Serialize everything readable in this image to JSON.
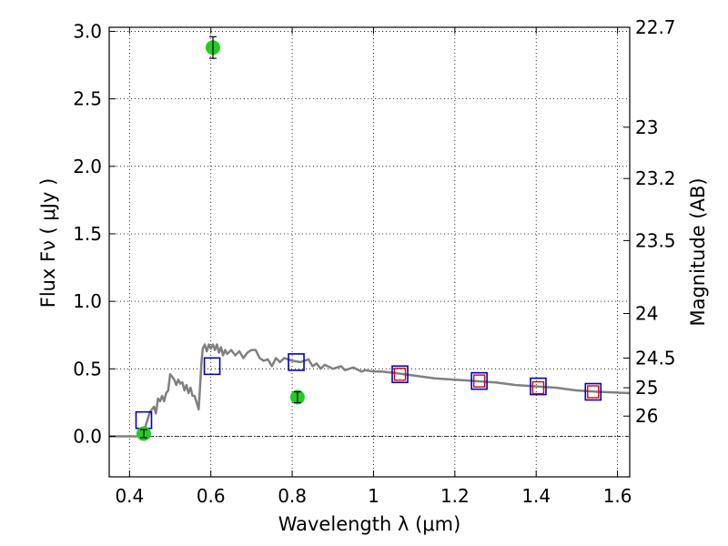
{
  "chart_data": {
    "type": "scatter",
    "xlabel": "Wavelength  λ (μm)",
    "ylabel": "Flux  Fν  ( μJy )",
    "y2label": "Magnitude (AB)",
    "xlim": [
      0.35,
      1.63
    ],
    "ylim": [
      -0.3,
      3.03
    ],
    "grid": true,
    "x_ticks": [
      0.4,
      0.6,
      0.8,
      1.0,
      1.2,
      1.4,
      1.6
    ],
    "x_tick_labels": [
      "0.4",
      "0.6",
      "0.8",
      "1",
      "1.2",
      "1.4",
      "1.6"
    ],
    "y_ticks": [
      0.0,
      0.5,
      1.0,
      1.5,
      2.0,
      2.5,
      3.0
    ],
    "y_tick_labels": [
      "0.0",
      "0.5",
      "1.0",
      "1.5",
      "2.0",
      "2.5",
      "3.0"
    ],
    "y2_ticks": [
      {
        "label": "22.7",
        "flux": 3.03
      },
      {
        "label": "23",
        "flux": 2.29
      },
      {
        "label": "23.2",
        "flux": 1.91
      },
      {
        "label": "23.5",
        "flux": 1.45
      },
      {
        "label": "24",
        "flux": 0.91
      },
      {
        "label": "24.5",
        "flux": 0.58
      },
      {
        "label": "25",
        "flux": 0.36
      },
      {
        "label": "26",
        "flux": 0.15
      }
    ],
    "series": [
      {
        "kind": "line",
        "color": "#808080",
        "points": [
          [
            0.35,
            0.0
          ],
          [
            0.42,
            0.0
          ],
          [
            0.43,
            0.02
          ],
          [
            0.44,
            0.08
          ],
          [
            0.45,
            0.18
          ],
          [
            0.46,
            0.22
          ],
          [
            0.465,
            0.17
          ],
          [
            0.47,
            0.28
          ],
          [
            0.475,
            0.26
          ],
          [
            0.48,
            0.3
          ],
          [
            0.485,
            0.26
          ],
          [
            0.49,
            0.32
          ],
          [
            0.495,
            0.34
          ],
          [
            0.5,
            0.46
          ],
          [
            0.505,
            0.44
          ],
          [
            0.51,
            0.42
          ],
          [
            0.515,
            0.38
          ],
          [
            0.52,
            0.42
          ],
          [
            0.525,
            0.39
          ],
          [
            0.53,
            0.4
          ],
          [
            0.535,
            0.34
          ],
          [
            0.54,
            0.38
          ],
          [
            0.545,
            0.32
          ],
          [
            0.55,
            0.36
          ],
          [
            0.555,
            0.3
          ],
          [
            0.56,
            0.3
          ],
          [
            0.565,
            0.25
          ],
          [
            0.57,
            0.2
          ],
          [
            0.573,
            0.35
          ],
          [
            0.577,
            0.55
          ],
          [
            0.58,
            0.65
          ],
          [
            0.585,
            0.68
          ],
          [
            0.59,
            0.63
          ],
          [
            0.595,
            0.68
          ],
          [
            0.6,
            0.65
          ],
          [
            0.605,
            0.68
          ],
          [
            0.61,
            0.64
          ],
          [
            0.615,
            0.68
          ],
          [
            0.62,
            0.62
          ],
          [
            0.625,
            0.66
          ],
          [
            0.63,
            0.6
          ],
          [
            0.635,
            0.64
          ],
          [
            0.64,
            0.61
          ],
          [
            0.65,
            0.64
          ],
          [
            0.66,
            0.6
          ],
          [
            0.67,
            0.63
          ],
          [
            0.68,
            0.58
          ],
          [
            0.69,
            0.62
          ],
          [
            0.7,
            0.64
          ],
          [
            0.71,
            0.64
          ],
          [
            0.72,
            0.58
          ],
          [
            0.73,
            0.56
          ],
          [
            0.74,
            0.57
          ],
          [
            0.75,
            0.52
          ],
          [
            0.76,
            0.58
          ],
          [
            0.77,
            0.55
          ],
          [
            0.78,
            0.58
          ],
          [
            0.8,
            0.56
          ],
          [
            0.82,
            0.55
          ],
          [
            0.84,
            0.57
          ],
          [
            0.85,
            0.52
          ],
          [
            0.86,
            0.54
          ],
          [
            0.87,
            0.5
          ],
          [
            0.88,
            0.53
          ],
          [
            0.9,
            0.5
          ],
          [
            0.92,
            0.52
          ],
          [
            0.93,
            0.49
          ],
          [
            0.95,
            0.51
          ],
          [
            0.97,
            0.48
          ],
          [
            0.98,
            0.49
          ],
          [
            1.0,
            0.48
          ],
          [
            1.02,
            0.48
          ],
          [
            1.05,
            0.47
          ],
          [
            1.1,
            0.45
          ],
          [
            1.15,
            0.43
          ],
          [
            1.2,
            0.42
          ],
          [
            1.25,
            0.41
          ],
          [
            1.3,
            0.4
          ],
          [
            1.35,
            0.38
          ],
          [
            1.4,
            0.37
          ],
          [
            1.45,
            0.36
          ],
          [
            1.5,
            0.34
          ],
          [
            1.55,
            0.33
          ],
          [
            1.63,
            0.32
          ]
        ]
      },
      {
        "kind": "open_square",
        "color": "#0000cc",
        "points": [
          [
            0.435,
            0.12
          ],
          [
            0.603,
            0.52
          ],
          [
            0.81,
            0.55
          ],
          [
            1.065,
            0.46
          ],
          [
            1.26,
            0.41
          ],
          [
            1.405,
            0.37
          ],
          [
            1.54,
            0.33
          ]
        ]
      },
      {
        "kind": "open_square_small",
        "color": "#dd0000",
        "points": [
          [
            1.065,
            0.46
          ],
          [
            1.26,
            0.41
          ],
          [
            1.405,
            0.36
          ],
          [
            1.54,
            0.33
          ]
        ]
      },
      {
        "kind": "errorbar_point",
        "color": "#22cc22",
        "points": [
          {
            "x": 0.435,
            "y": 0.02,
            "err": 0.03
          },
          {
            "x": 0.605,
            "y": 2.88,
            "err": 0.08
          },
          {
            "x": 0.813,
            "y": 0.29,
            "err": 0.04
          }
        ]
      }
    ]
  }
}
